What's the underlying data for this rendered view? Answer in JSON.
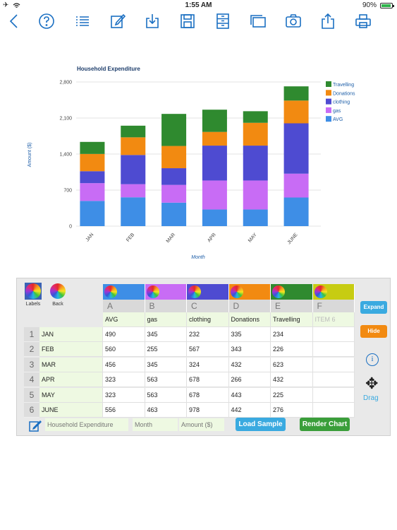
{
  "status": {
    "time": "1:55 AM",
    "battery": "90%"
  },
  "toolbar": {
    "icons": [
      "back-icon",
      "help-icon",
      "list-icon",
      "edit-icon",
      "download-icon",
      "save-icon",
      "cabinet-icon",
      "windows-icon",
      "camera-icon",
      "share-icon",
      "print-icon"
    ]
  },
  "chart_data": {
    "type": "bar",
    "stacked": true,
    "title": "Household Expenditure",
    "xlabel": "Month",
    "ylabel": "Amount ($)",
    "ylim": [
      0,
      2800
    ],
    "yticks": [
      "0",
      "700",
      "1,400",
      "2,100",
      "2,800"
    ],
    "categories": [
      "JAN",
      "FEB",
      "MAR",
      "APR",
      "MAY",
      "JUNE"
    ],
    "series": [
      {
        "name": "AVG",
        "color": "#3e8ee6",
        "values": [
          490,
          560,
          456,
          323,
          323,
          556
        ]
      },
      {
        "name": "gas",
        "color": "#c86cf5",
        "values": [
          345,
          255,
          345,
          563,
          563,
          463
        ]
      },
      {
        "name": "clothing",
        "color": "#4e4bd1",
        "values": [
          232,
          567,
          324,
          678,
          678,
          978
        ]
      },
      {
        "name": "Donations",
        "color": "#f28a11",
        "values": [
          335,
          343,
          432,
          266,
          443,
          442
        ]
      },
      {
        "name": "Travelling",
        "color": "#2f8a2f",
        "values": [
          234,
          226,
          623,
          432,
          225,
          276
        ]
      }
    ],
    "legend_order": [
      "Travelling",
      "Donations",
      "clothing",
      "gas",
      "AVG"
    ],
    "legend": "right",
    "grid": true
  },
  "panel": {
    "labels_btn": "Labels",
    "back_btn": "Back",
    "columns": [
      {
        "letter": "A",
        "name": "AVG",
        "color": "#3e8ee6"
      },
      {
        "letter": "B",
        "name": "gas",
        "color": "#c86cf5"
      },
      {
        "letter": "C",
        "name": "clothing",
        "color": "#4e4bd1"
      },
      {
        "letter": "D",
        "name": "Donations",
        "color": "#f28a11"
      },
      {
        "letter": "E",
        "name": "Travelling",
        "color": "#2f8a2f"
      },
      {
        "letter": "F",
        "name": "ITEM 6",
        "color": "#c7cc12"
      }
    ],
    "rows": [
      {
        "num": "1",
        "label": "JAN",
        "values": [
          "490",
          "345",
          "232",
          "335",
          "234",
          ""
        ]
      },
      {
        "num": "2",
        "label": "FEB",
        "values": [
          "560",
          "255",
          "567",
          "343",
          "226",
          ""
        ]
      },
      {
        "num": "3",
        "label": "MAR",
        "values": [
          "456",
          "345",
          "324",
          "432",
          "623",
          ""
        ]
      },
      {
        "num": "4",
        "label": "APR",
        "values": [
          "323",
          "563",
          "678",
          "266",
          "432",
          ""
        ]
      },
      {
        "num": "5",
        "label": "MAY",
        "values": [
          "323",
          "563",
          "678",
          "443",
          "225",
          ""
        ]
      },
      {
        "num": "6",
        "label": "JUNE",
        "values": [
          "556",
          "463",
          "978",
          "442",
          "276",
          ""
        ]
      }
    ],
    "expand": "Expand",
    "hide": "Hide",
    "drag": "Drag",
    "title_input": "Household Expenditure",
    "xlabel_input": "Month",
    "ylabel_input": "Amount ($)",
    "load_sample": "Load Sample",
    "render_chart": "Render Chart"
  }
}
